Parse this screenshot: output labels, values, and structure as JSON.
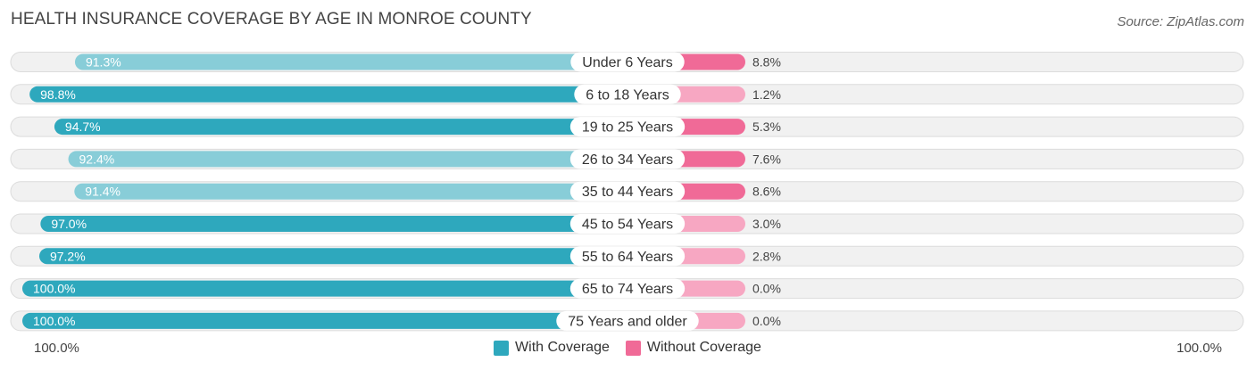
{
  "title": "HEALTH INSURANCE COVERAGE BY AGE IN MONROE COUNTY",
  "source": "Source: ZipAtlas.com",
  "colors": {
    "with_dark": "#2ea8bd",
    "with_light": "#88cdd8",
    "without_dark": "#f06a97",
    "without_light": "#f7a7c2"
  },
  "legend": {
    "with_label": "With Coverage",
    "without_label": "Without Coverage"
  },
  "axis": {
    "left_label": "100.0%",
    "right_label": "100.0%"
  },
  "chart_data": {
    "type": "bar",
    "title": "HEALTH INSURANCE COVERAGE BY AGE IN MONROE COUNTY",
    "categories": [
      "Under 6 Years",
      "6 to 18 Years",
      "19 to 25 Years",
      "26 to 34 Years",
      "35 to 44 Years",
      "45 to 54 Years",
      "55 to 64 Years",
      "65 to 74 Years",
      "75 Years and older"
    ],
    "series": [
      {
        "name": "With Coverage",
        "values": [
          91.3,
          98.8,
          94.7,
          92.4,
          91.4,
          97.0,
          97.2,
          100.0,
          100.0
        ],
        "labels": [
          "91.3%",
          "98.8%",
          "94.7%",
          "92.4%",
          "91.4%",
          "97.0%",
          "97.2%",
          "100.0%",
          "100.0%"
        ]
      },
      {
        "name": "Without Coverage",
        "values": [
          8.8,
          1.2,
          5.3,
          7.6,
          8.6,
          3.0,
          2.8,
          0.0,
          0.0
        ],
        "labels": [
          "8.8%",
          "1.2%",
          "5.3%",
          "7.6%",
          "8.6%",
          "3.0%",
          "2.8%",
          "0.0%",
          "0.0%"
        ]
      }
    ],
    "xlim": [
      0,
      100
    ]
  }
}
